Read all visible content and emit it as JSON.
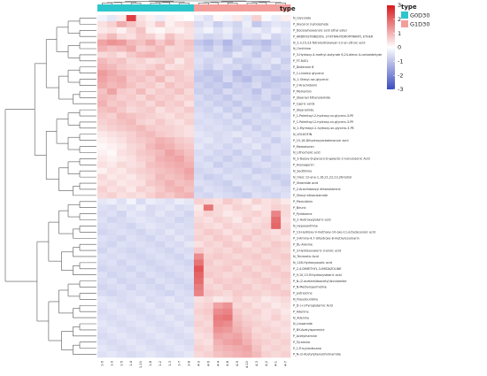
{
  "chart_data": {
    "type": "heatmap",
    "annotation_title": "type",
    "groups": [
      {
        "name": "G0D30",
        "color": "#2cc6cd"
      },
      {
        "name": "G1D30",
        "color": "#f39e9b"
      }
    ],
    "column_groups": [
      "G0D30",
      "G0D30",
      "G0D30",
      "G0D30",
      "G0D30",
      "G0D30",
      "G0D30",
      "G0D30",
      "G0D30",
      "G0D30",
      "G1D30",
      "G1D30",
      "G1D30",
      "G1D30",
      "G1D30",
      "G1D30",
      "G1D30",
      "G1D30",
      "G1D30",
      "G1D30"
    ],
    "columns": [
      "1-6",
      "1-9",
      "1-5",
      "1-4",
      "1-10",
      "1-8",
      "1-2",
      "1-3",
      "1-7",
      "3-8",
      "4-9",
      "4-6",
      "4-4",
      "4-8",
      "4-5",
      "4-10",
      "4-3",
      "4-2",
      "4-1",
      "4-7"
    ],
    "rows": [
      "N_Glycolate",
      "P_Glycerol 3-phosphate",
      "P_Docosahexaenoic acid ethyl ester",
      "P_ANDROSTENEDIOL 3-TETRAHYDROPYRANYL ETHER",
      "N_2,3,15,23-Tetrahydroxylean-12-en-28-oic acid",
      "N_Ornithine",
      "P_3-Hydroxy-4-methyl-butyrate 6,24-diene-4-carbaldehyde",
      "P_FT-8451",
      "P_Disterone B",
      "P_1-Linoleyl glycerol",
      "N_1-Oleoyl-rac-glycerol",
      "P_2-Arachidonin",
      "P_Momorbin",
      "P_Stearoyl Ethanolamide",
      "P_Capric acids",
      "P_Stearamide",
      "P_1-Palmitoyl-2-hydroxy-sn-glycero-3-PE",
      "P_1-Palmitoyl-2-hydroxy-sn-glycero-3-PE",
      "N_1-Myristoyl-2-hydroxy-sn-glycero-3-PE",
      "N_VOLKOFIN",
      "P_15,16-Dihydroxyoctadecanoic acid",
      "P_Momokuren",
      "N_Lithocholic acid",
      "N_3-Deoxy-D-glycero-D-galacto-2-nonulosonic Acid",
      "P_Asenagenin",
      "N_Seditinine",
      "N_Oleic 12-ene-1,16,21,22,23,26-tetrol",
      "P_Oleamide acid",
      "P_2-Arachidonoyl ethanolamine",
      "P_Oleoyl ethanolamide",
      "P_Piericidinin",
      "P_Biruric",
      "P_Pyridoxine",
      "N_2-Hydroxyglutaric acid",
      "N_Hypoxanthine",
      "P_13-Hydroxy-9-methoxy-10-oxo-11-octadecenoic acid",
      "P_3-Amino-4,7-dihydroxy-8-methylcoumarin",
      "P_DL-Alanine",
      "P_3-Hydroxyvaleric-3-enoic acid",
      "N_Tricimetic Acid",
      "N_11B-Hydroxyoxalic acid",
      "P_2,4-DIMETHYL-3-IMIDAZOLINE",
      "P_9,10,13-Trihydroxystearic acid",
      "P_N-(2-acetamidoacetyl)levulamide",
      "P_N-Methylspermidine",
      "P_putrescine",
      "N_Pseudouridine",
      "P_D-(+)-Pyroglutamic Acid",
      "P_Adenine",
      "N_Adenine",
      "N_Linoamide",
      "P_NY-Acetylspermine",
      "P_Acetylhamine",
      "P_Tyramine",
      "P_1-Tricyclodecane",
      "P_N-(2-Acetylphenyl)formamide"
    ],
    "values": [
      [
        -0.2,
        -0.4,
        0.3,
        2.5,
        0.4,
        0.2,
        -0.3,
        0.2,
        0.1,
        0.0,
        -0.3,
        -0.5,
        0.1,
        -0.2,
        0.3,
        -0.4,
        0.6,
        -0.1,
        -0.3,
        0.2
      ],
      [
        0.4,
        0.6,
        1.1,
        0.8,
        0.5,
        0.3,
        0.7,
        0.2,
        0.4,
        0.5,
        -0.6,
        -0.4,
        -0.8,
        -0.5,
        -0.7,
        -0.3,
        -0.9,
        -0.6,
        -0.4,
        -0.5
      ],
      [
        0.3,
        0.4,
        0.2,
        0.5,
        0.8,
        0.2,
        0.1,
        0.3,
        0.2,
        0.4,
        -0.4,
        -0.2,
        -0.5,
        -0.3,
        -0.6,
        -0.4,
        -0.3,
        -0.5,
        -0.2,
        -0.4
      ],
      [
        0.6,
        0.9,
        0.5,
        0.4,
        0.7,
        0.6,
        0.3,
        0.8,
        0.5,
        0.4,
        -0.5,
        -0.7,
        -0.6,
        -0.4,
        -0.8,
        -0.5,
        -0.6,
        -0.3,
        -0.7,
        -0.5
      ],
      [
        1.2,
        1.4,
        1.3,
        0.9,
        0.8,
        1.1,
        0.7,
        1.0,
        0.6,
        0.8,
        -0.9,
        -1.1,
        -0.8,
        -1.2,
        -0.7,
        -1.0,
        -0.9,
        -1.1,
        -0.8,
        -0.6
      ],
      [
        1.0,
        0.8,
        0.9,
        1.1,
        0.6,
        0.7,
        0.9,
        0.5,
        0.6,
        0.7,
        -0.7,
        -0.9,
        -0.6,
        -1.0,
        -0.8,
        -0.5,
        -0.7,
        -0.9,
        -0.6,
        -0.8
      ],
      [
        0.5,
        0.6,
        0.4,
        0.7,
        0.9,
        1.0,
        0.8,
        0.6,
        0.7,
        0.5,
        -0.6,
        -0.5,
        -0.7,
        -0.8,
        -0.4,
        -0.6,
        -0.9,
        -0.5,
        -0.7,
        -0.6
      ],
      [
        0.9,
        0.7,
        0.8,
        0.5,
        0.6,
        0.4,
        0.5,
        0.7,
        0.3,
        0.6,
        -0.5,
        -0.7,
        -0.6,
        -0.4,
        -0.8,
        -0.7,
        -0.5,
        -0.6,
        -0.4,
        -0.8
      ],
      [
        1.0,
        0.9,
        0.7,
        0.6,
        0.5,
        0.6,
        0.8,
        0.4,
        0.5,
        0.6,
        -0.6,
        -0.8,
        -0.5,
        -0.7,
        -0.6,
        -0.9,
        -0.7,
        -0.5,
        -0.8,
        -0.6
      ],
      [
        1.3,
        1.1,
        0.9,
        0.8,
        0.7,
        0.9,
        0.6,
        0.8,
        0.7,
        0.5,
        -0.8,
        -1.0,
        -0.9,
        -0.7,
        -1.1,
        -0.8,
        -0.9,
        -1.0,
        -0.7,
        -0.8
      ],
      [
        1.2,
        1.0,
        1.1,
        0.7,
        0.8,
        0.6,
        0.9,
        0.5,
        0.7,
        0.6,
        -0.9,
        -0.8,
        -1.0,
        -0.6,
        -0.9,
        -1.1,
        -0.7,
        -0.8,
        -1.0,
        -0.9
      ],
      [
        1.1,
        0.9,
        1.0,
        0.8,
        0.6,
        0.7,
        0.5,
        0.8,
        0.6,
        0.7,
        -0.7,
        -0.9,
        -0.8,
        -1.0,
        -0.7,
        -0.8,
        -0.6,
        -0.9,
        -0.8,
        -0.7
      ],
      [
        0.8,
        1.2,
        0.7,
        0.6,
        0.9,
        0.5,
        0.7,
        0.6,
        0.8,
        0.5,
        -0.8,
        -0.7,
        -0.9,
        -0.6,
        -0.8,
        -0.7,
        -1.0,
        -0.6,
        -0.7,
        -0.9
      ],
      [
        0.9,
        0.8,
        0.6,
        0.7,
        0.5,
        0.8,
        0.6,
        0.7,
        0.5,
        0.6,
        -0.6,
        -0.8,
        -0.7,
        -0.9,
        -0.6,
        -0.7,
        -0.8,
        -0.6,
        -0.9,
        -0.7
      ],
      [
        1.0,
        0.7,
        0.8,
        0.6,
        0.7,
        0.5,
        0.8,
        0.6,
        0.7,
        0.4,
        -0.7,
        -0.6,
        -0.8,
        -0.7,
        -0.9,
        -0.6,
        -0.7,
        -0.8,
        -0.6,
        -0.8
      ],
      [
        0.8,
        0.9,
        0.7,
        0.5,
        0.6,
        0.7,
        0.4,
        0.6,
        0.5,
        0.7,
        -0.6,
        -0.7,
        -0.5,
        -0.8,
        -0.6,
        -0.9,
        -0.6,
        -0.7,
        -0.8,
        -0.5
      ],
      [
        0.7,
        0.6,
        0.9,
        0.8,
        0.7,
        0.6,
        0.5,
        0.4,
        0.6,
        0.5,
        -0.5,
        -0.6,
        -0.7,
        -0.5,
        -0.8,
        -0.6,
        -0.7,
        -0.5,
        -0.6,
        -0.7
      ],
      [
        0.6,
        0.7,
        0.8,
        0.9,
        0.6,
        0.5,
        0.7,
        0.5,
        0.4,
        0.6,
        -0.6,
        -0.5,
        -0.6,
        -0.7,
        -0.5,
        -0.8,
        -0.6,
        -0.7,
        -0.5,
        -0.6
      ],
      [
        0.5,
        0.6,
        0.7,
        0.8,
        0.9,
        0.7,
        0.6,
        0.6,
        0.5,
        0.4,
        -0.5,
        -0.6,
        -0.5,
        -0.6,
        -0.7,
        -0.5,
        -0.8,
        -0.6,
        -0.7,
        -0.5
      ],
      [
        0.3,
        0.4,
        0.5,
        0.6,
        0.8,
        0.9,
        0.7,
        0.6,
        0.5,
        0.4,
        -0.4,
        -0.5,
        -0.6,
        -0.5,
        -0.4,
        -0.6,
        -0.5,
        -0.7,
        -0.5,
        -0.4
      ],
      [
        0.2,
        0.3,
        0.4,
        0.6,
        0.7,
        0.8,
        1.0,
        0.9,
        0.7,
        0.6,
        -0.5,
        -0.4,
        -0.6,
        -0.5,
        -0.7,
        -0.4,
        -0.6,
        -0.5,
        -0.8,
        -0.5
      ],
      [
        0.1,
        0.2,
        0.3,
        0.5,
        0.6,
        0.9,
        1.1,
        1.0,
        0.8,
        0.7,
        -0.4,
        -0.6,
        -0.5,
        -0.7,
        -0.5,
        -0.6,
        -0.4,
        -0.7,
        -0.5,
        -0.6
      ],
      [
        0.2,
        0.1,
        0.4,
        0.5,
        0.7,
        0.8,
        0.9,
        1.2,
        1.0,
        0.8,
        -0.6,
        -0.5,
        -0.7,
        -0.6,
        -0.8,
        -0.5,
        -0.7,
        -0.6,
        -0.5,
        -0.7
      ],
      [
        0.3,
        0.2,
        0.3,
        0.4,
        0.6,
        0.7,
        1.0,
        1.1,
        1.2,
        0.9,
        -0.5,
        -0.7,
        -0.6,
        -0.8,
        -0.6,
        -0.7,
        -0.5,
        -0.8,
        -0.6,
        -0.5
      ],
      [
        0.4,
        0.3,
        0.5,
        0.4,
        0.5,
        0.8,
        0.9,
        1.0,
        1.1,
        1.0,
        -0.6,
        -0.5,
        -0.8,
        -0.6,
        -0.7,
        -0.8,
        -0.6,
        -0.5,
        -0.7,
        -0.6
      ],
      [
        0.2,
        0.4,
        0.3,
        0.5,
        0.6,
        0.7,
        0.8,
        0.9,
        1.0,
        1.2,
        -0.7,
        -0.6,
        -0.5,
        -0.7,
        -0.6,
        -0.5,
        -0.8,
        -0.7,
        -0.6,
        -0.5
      ],
      [
        0.5,
        0.3,
        0.4,
        0.3,
        0.5,
        0.6,
        0.9,
        0.8,
        0.9,
        1.1,
        -0.6,
        -0.8,
        -0.7,
        -0.5,
        -0.6,
        -0.7,
        -0.5,
        -0.6,
        -0.8,
        -0.7
      ],
      [
        0.4,
        0.5,
        0.3,
        0.4,
        0.4,
        0.7,
        0.8,
        1.0,
        0.8,
        0.9,
        -0.5,
        -0.6,
        -0.7,
        -0.8,
        -0.5,
        -0.6,
        -0.7,
        -0.5,
        -0.6,
        -0.8
      ],
      [
        0.6,
        0.4,
        0.5,
        0.3,
        0.6,
        0.5,
        0.7,
        0.9,
        1.0,
        0.8,
        -0.7,
        -0.5,
        -0.6,
        -0.7,
        -0.8,
        -0.5,
        -0.6,
        -0.7,
        -0.5,
        -0.6
      ],
      [
        0.5,
        0.6,
        0.4,
        0.5,
        0.4,
        0.6,
        0.8,
        0.7,
        0.9,
        1.0,
        -0.6,
        -0.7,
        -0.5,
        -0.6,
        -0.7,
        -0.8,
        -0.5,
        -0.6,
        -0.7,
        -0.5
      ],
      [
        -0.4,
        -0.3,
        -0.5,
        -0.2,
        -0.6,
        -0.3,
        -0.4,
        -0.5,
        -0.3,
        -0.4,
        0.6,
        0.5,
        0.4,
        0.7,
        0.5,
        0.3,
        0.6,
        0.4,
        0.5,
        0.3
      ],
      [
        -0.5,
        -0.6,
        -0.4,
        -0.5,
        -0.3,
        -0.6,
        -0.5,
        -0.4,
        -0.6,
        -0.5,
        0.3,
        1.8,
        0.5,
        0.4,
        0.6,
        0.5,
        0.3,
        0.4,
        0.6,
        0.5
      ],
      [
        -0.6,
        -0.5,
        -0.7,
        -0.4,
        -0.5,
        -0.6,
        -0.4,
        -0.6,
        -0.5,
        -0.7,
        0.4,
        0.6,
        0.5,
        0.3,
        0.4,
        0.5,
        0.6,
        0.4,
        1.6,
        0.5
      ],
      [
        -0.5,
        -0.7,
        -0.6,
        -0.5,
        -0.4,
        -0.5,
        -0.6,
        -0.5,
        -0.7,
        -0.6,
        0.5,
        0.4,
        0.6,
        0.5,
        0.3,
        0.6,
        0.4,
        0.5,
        1.9,
        0.4
      ],
      [
        -0.6,
        -0.5,
        -0.6,
        -0.7,
        -0.5,
        -0.4,
        -0.5,
        -0.6,
        -0.5,
        -0.6,
        0.6,
        0.5,
        0.4,
        0.6,
        0.5,
        0.4,
        0.5,
        0.6,
        2.0,
        0.5
      ],
      [
        -0.7,
        -0.6,
        -0.5,
        -0.6,
        -0.7,
        -0.5,
        -0.6,
        -0.4,
        -0.6,
        -0.5,
        0.5,
        0.7,
        0.6,
        0.4,
        0.6,
        0.5,
        0.7,
        0.5,
        0.4,
        0.6
      ],
      [
        -0.5,
        -0.6,
        -0.7,
        -0.5,
        -0.6,
        -0.7,
        -0.5,
        -0.6,
        -0.4,
        -0.6,
        0.6,
        0.5,
        0.7,
        0.6,
        0.4,
        0.7,
        0.5,
        0.6,
        0.5,
        0.4
      ],
      [
        -0.6,
        -0.7,
        -0.5,
        -0.6,
        -0.5,
        -0.6,
        -0.7,
        -0.5,
        -0.6,
        -0.4,
        0.4,
        0.6,
        0.5,
        0.7,
        0.6,
        0.4,
        0.6,
        0.5,
        0.7,
        0.6
      ],
      [
        -0.7,
        -0.5,
        -0.6,
        -0.7,
        -0.6,
        -0.5,
        -0.6,
        -0.7,
        -0.5,
        -0.6,
        0.7,
        0.5,
        0.6,
        0.5,
        0.7,
        0.6,
        0.5,
        0.7,
        0.6,
        0.5
      ],
      [
        -0.5,
        -0.6,
        -0.5,
        -0.6,
        -0.7,
        -0.6,
        -0.5,
        -0.6,
        -0.7,
        -0.5,
        1.5,
        0.6,
        0.7,
        0.6,
        0.5,
        0.6,
        0.7,
        0.5,
        0.6,
        0.7
      ],
      [
        -0.6,
        -0.5,
        -0.7,
        -0.5,
        -0.6,
        -0.7,
        -0.6,
        -0.5,
        -0.6,
        -0.7,
        1.8,
        0.7,
        0.5,
        0.6,
        0.7,
        0.5,
        0.6,
        0.7,
        0.5,
        0.6
      ],
      [
        -0.7,
        -0.6,
        -0.6,
        -0.7,
        -0.5,
        -0.6,
        -0.7,
        -0.6,
        -0.5,
        -0.6,
        2.2,
        0.6,
        0.6,
        0.7,
        0.5,
        0.7,
        0.5,
        0.6,
        0.7,
        0.5
      ],
      [
        -0.5,
        -0.7,
        -0.6,
        -0.5,
        -0.7,
        -0.5,
        -0.6,
        -0.7,
        -0.6,
        -0.5,
        2.0,
        0.7,
        0.6,
        0.5,
        0.6,
        0.6,
        0.7,
        0.5,
        0.6,
        0.7
      ],
      [
        -0.6,
        -0.5,
        -0.7,
        -0.6,
        -0.6,
        -0.7,
        -0.5,
        -0.6,
        -0.7,
        -0.6,
        1.9,
        0.5,
        0.7,
        0.6,
        0.7,
        0.5,
        0.6,
        0.7,
        0.5,
        0.6
      ],
      [
        -0.7,
        -0.6,
        -0.5,
        -0.7,
        -0.5,
        -0.6,
        -0.7,
        -0.5,
        -0.6,
        -0.7,
        1.7,
        0.6,
        0.5,
        0.7,
        0.6,
        0.7,
        0.5,
        0.6,
        0.7,
        0.5
      ],
      [
        -0.6,
        -0.7,
        -0.6,
        -0.5,
        -0.6,
        -0.5,
        -0.6,
        -0.7,
        -0.5,
        -0.6,
        1.6,
        0.7,
        0.6,
        0.5,
        0.7,
        0.6,
        0.6,
        0.5,
        0.6,
        0.7
      ],
      [
        -0.4,
        -0.5,
        -0.6,
        -0.5,
        -0.4,
        -0.6,
        -0.5,
        -0.4,
        -0.6,
        -0.5,
        0.4,
        0.5,
        0.3,
        0.4,
        0.6,
        0.4,
        0.5,
        0.3,
        0.4,
        0.5
      ],
      [
        -0.5,
        -0.4,
        -0.5,
        -0.6,
        -0.5,
        -0.4,
        -0.6,
        -0.5,
        -0.4,
        -0.6,
        0.5,
        0.6,
        1.2,
        1.4,
        0.5,
        0.6,
        0.4,
        0.5,
        0.3,
        0.4
      ],
      [
        -0.6,
        -0.5,
        -0.4,
        -0.5,
        -0.6,
        -0.5,
        -0.4,
        -0.6,
        -0.5,
        -0.4,
        0.6,
        0.7,
        1.5,
        1.6,
        0.7,
        0.5,
        0.6,
        0.4,
        0.5,
        0.3
      ],
      [
        -0.5,
        -0.6,
        -0.5,
        -0.4,
        -0.5,
        -0.6,
        -0.5,
        -0.4,
        -0.6,
        -0.5,
        0.5,
        0.6,
        1.7,
        1.8,
        0.8,
        0.6,
        0.5,
        0.4,
        0.6,
        0.4
      ],
      [
        -0.4,
        -0.5,
        -0.6,
        -0.5,
        -0.4,
        -0.5,
        -0.6,
        -0.5,
        -0.4,
        -0.6,
        0.6,
        0.5,
        1.6,
        1.5,
        0.9,
        0.7,
        0.6,
        0.5,
        0.4,
        0.5
      ],
      [
        -0.5,
        -0.4,
        -0.5,
        -0.6,
        -0.5,
        -0.4,
        -0.5,
        -0.6,
        -0.5,
        -0.4,
        0.5,
        0.6,
        1.4,
        1.3,
        1.0,
        0.8,
        0.5,
        0.6,
        0.5,
        0.4
      ],
      [
        -0.6,
        -0.5,
        -0.4,
        -0.5,
        -0.6,
        -0.5,
        -0.4,
        -0.5,
        -0.6,
        -0.5,
        0.4,
        0.5,
        1.2,
        1.1,
        1.2,
        0.9,
        0.6,
        0.5,
        0.6,
        0.5
      ],
      [
        -0.5,
        -0.6,
        -0.5,
        -0.4,
        -0.5,
        -0.6,
        -0.5,
        -0.4,
        -0.5,
        -0.6,
        0.5,
        0.4,
        1.0,
        1.2,
        1.3,
        1.0,
        0.7,
        0.6,
        0.5,
        0.6
      ],
      [
        -0.4,
        -0.5,
        -0.6,
        -0.5,
        -0.4,
        -0.5,
        -0.6,
        -0.5,
        -0.4,
        -0.5,
        0.6,
        0.5,
        0.9,
        1.0,
        1.1,
        1.2,
        0.8,
        0.5,
        0.6,
        0.5
      ],
      [
        -0.5,
        -0.4,
        -0.5,
        -0.6,
        -0.5,
        -0.4,
        -0.5,
        -0.6,
        -0.5,
        -0.4,
        0.5,
        0.6,
        0.8,
        0.9,
        1.0,
        1.1,
        0.9,
        0.6,
        0.5,
        0.6
      ]
    ],
    "color_scale": {
      "min": -3,
      "max": 3,
      "low": "#3b4cc0",
      "mid": "#ffffff",
      "high": "#d7191c",
      "ticks": [
        3,
        2,
        1,
        0,
        -1,
        -2,
        -3
      ]
    }
  }
}
